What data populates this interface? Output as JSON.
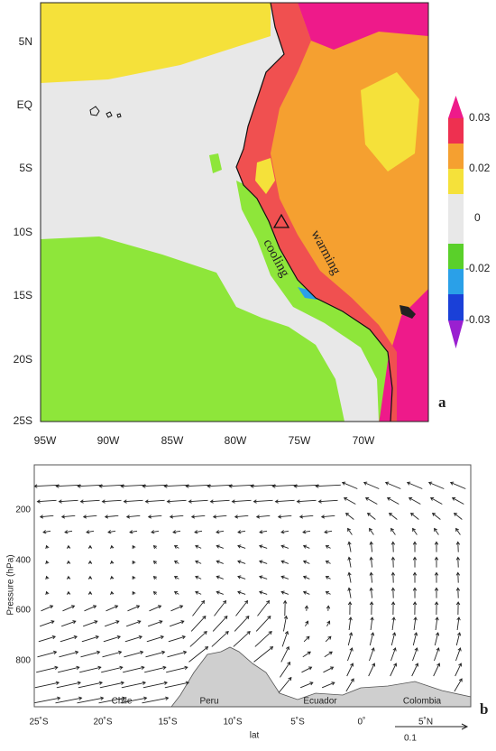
{
  "panel_a": {
    "label": "a",
    "y_labels": [
      "5N",
      "EQ",
      "5S",
      "10S",
      "15S",
      "20S",
      "25S"
    ],
    "x_labels": [
      "95W",
      "90W",
      "85W",
      "80W",
      "75W",
      "70W"
    ],
    "colorbar_labels": [
      "0.03",
      "0.02",
      "0",
      "-0.02",
      "-0.03"
    ],
    "annotations": [
      "cooling",
      "warming"
    ]
  },
  "panel_b": {
    "label": "b",
    "y_axis_title": "Pressure (hPa)",
    "y_labels": [
      "200",
      "400",
      "600",
      "800"
    ],
    "x_axis_title": "lat",
    "x_labels": [
      "25˚S",
      "20˚S",
      "15˚S",
      "10˚S",
      "5˚S",
      "0˚",
      "5˚N"
    ],
    "countries": [
      "Chile",
      "Peru",
      "Ecuador",
      "Colombia"
    ],
    "reference_vector": "0.1"
  }
}
